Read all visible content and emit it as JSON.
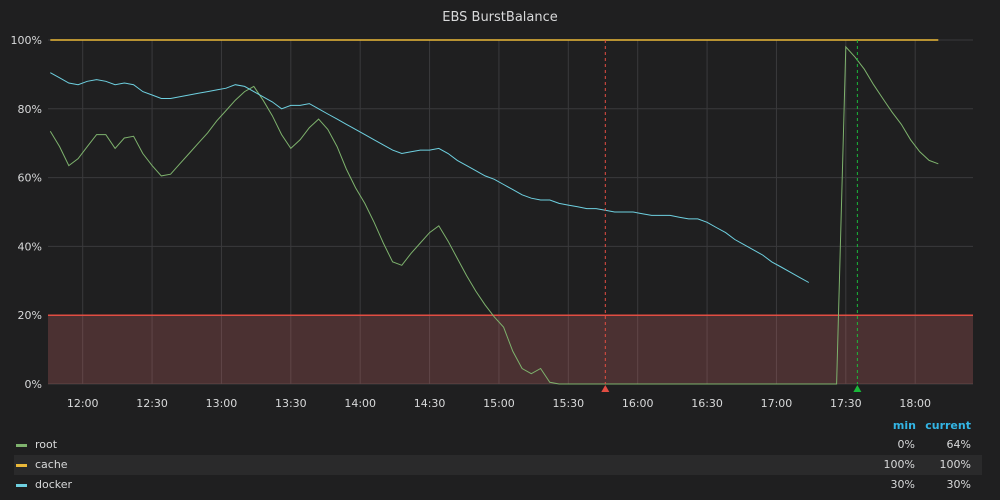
{
  "chart_data": {
    "type": "line",
    "title": "EBS BurstBalance",
    "y_unit": "%",
    "ylim": [
      0,
      100
    ],
    "y_ticks": [
      "0%",
      "20%",
      "40%",
      "60%",
      "80%",
      "100%"
    ],
    "x_ticks": [
      "12:00",
      "12:30",
      "13:00",
      "13:30",
      "14:00",
      "14:30",
      "15:00",
      "15:30",
      "16:00",
      "16:30",
      "17:00",
      "17:30",
      "18:00"
    ],
    "xlim": [
      "11:45",
      "18:25"
    ],
    "grid": true,
    "threshold": {
      "value": 20,
      "fill": "below",
      "color": "#e24d42"
    },
    "annotations": [
      {
        "time": "15:46",
        "color": "#e24d42"
      },
      {
        "time": "17:35",
        "color": "#1ab83a"
      }
    ],
    "series": [
      {
        "name": "root",
        "color": "#7eb26d",
        "points": [
          [
            "11:46",
            73.5
          ],
          [
            "11:50",
            69
          ],
          [
            "11:54",
            63.5
          ],
          [
            "11:58",
            65.5
          ],
          [
            "12:02",
            69
          ],
          [
            "12:06",
            72.5
          ],
          [
            "12:10",
            72.5
          ],
          [
            "12:14",
            68.5
          ],
          [
            "12:18",
            71.5
          ],
          [
            "12:22",
            72
          ],
          [
            "12:26",
            67
          ],
          [
            "12:30",
            63.5
          ],
          [
            "12:34",
            60.5
          ],
          [
            "12:38",
            61
          ],
          [
            "12:42",
            64
          ],
          [
            "12:46",
            67
          ],
          [
            "12:50",
            70
          ],
          [
            "12:54",
            73
          ],
          [
            "12:58",
            76.5
          ],
          [
            "13:02",
            79.5
          ],
          [
            "13:06",
            82.5
          ],
          [
            "13:10",
            85
          ],
          [
            "13:14",
            86.5
          ],
          [
            "13:18",
            82.5
          ],
          [
            "13:22",
            78
          ],
          [
            "13:26",
            72.5
          ],
          [
            "13:30",
            68.5
          ],
          [
            "13:34",
            71
          ],
          [
            "13:38",
            74.5
          ],
          [
            "13:42",
            77
          ],
          [
            "13:46",
            74
          ],
          [
            "13:50",
            69
          ],
          [
            "13:54",
            62.5
          ],
          [
            "13:58",
            57
          ],
          [
            "14:02",
            52.5
          ],
          [
            "14:06",
            47
          ],
          [
            "14:10",
            41
          ],
          [
            "14:14",
            35.5
          ],
          [
            "14:18",
            34.5
          ],
          [
            "14:22",
            38
          ],
          [
            "14:26",
            41
          ],
          [
            "14:30",
            44
          ],
          [
            "14:34",
            46
          ],
          [
            "14:38",
            41.5
          ],
          [
            "14:42",
            36.5
          ],
          [
            "14:46",
            31.5
          ],
          [
            "14:50",
            27
          ],
          [
            "14:54",
            23
          ],
          [
            "14:58",
            19.5
          ],
          [
            "15:02",
            16.5
          ],
          [
            "15:06",
            9.5
          ],
          [
            "15:10",
            4.5
          ],
          [
            "15:14",
            3
          ],
          [
            "15:18",
            4.5
          ],
          [
            "15:22",
            0.5
          ],
          [
            "15:26",
            0
          ],
          [
            "15:50",
            0
          ],
          [
            "16:20",
            0
          ],
          [
            "16:50",
            0
          ],
          [
            "17:20",
            0
          ],
          [
            "17:26",
            0
          ],
          [
            "17:30",
            98
          ],
          [
            "17:34",
            95
          ],
          [
            "17:38",
            91.5
          ],
          [
            "17:42",
            87
          ],
          [
            "17:46",
            83
          ],
          [
            "17:50",
            79
          ],
          [
            "17:54",
            75.5
          ],
          [
            "17:58",
            71
          ],
          [
            "18:02",
            67.5
          ],
          [
            "18:06",
            65
          ],
          [
            "18:10",
            64
          ]
        ]
      },
      {
        "name": "cache",
        "color": "#eab839",
        "points": [
          [
            "11:46",
            100
          ],
          [
            "18:10",
            100
          ]
        ]
      },
      {
        "name": "docker",
        "color": "#6ed0e0",
        "points": [
          [
            "11:46",
            90.5
          ],
          [
            "11:50",
            89
          ],
          [
            "11:54",
            87.5
          ],
          [
            "11:58",
            87
          ],
          [
            "12:02",
            88
          ],
          [
            "12:06",
            88.5
          ],
          [
            "12:10",
            88
          ],
          [
            "12:14",
            87
          ],
          [
            "12:18",
            87.5
          ],
          [
            "12:22",
            87
          ],
          [
            "12:26",
            85
          ],
          [
            "12:30",
            84
          ],
          [
            "12:34",
            83
          ],
          [
            "12:38",
            83
          ],
          [
            "12:42",
            83.5
          ],
          [
            "12:46",
            84
          ],
          [
            "12:50",
            84.5
          ],
          [
            "12:54",
            85
          ],
          [
            "12:58",
            85.5
          ],
          [
            "13:02",
            86
          ],
          [
            "13:06",
            87
          ],
          [
            "13:10",
            86.5
          ],
          [
            "13:14",
            85
          ],
          [
            "13:18",
            83.5
          ],
          [
            "13:22",
            82
          ],
          [
            "13:26",
            80
          ],
          [
            "13:30",
            81
          ],
          [
            "13:34",
            81
          ],
          [
            "13:38",
            81.5
          ],
          [
            "13:42",
            80
          ],
          [
            "13:46",
            78.5
          ],
          [
            "13:50",
            77
          ],
          [
            "13:54",
            75.5
          ],
          [
            "13:58",
            74
          ],
          [
            "14:02",
            72.5
          ],
          [
            "14:06",
            71
          ],
          [
            "14:10",
            69.5
          ],
          [
            "14:14",
            68
          ],
          [
            "14:18",
            67
          ],
          [
            "14:22",
            67.5
          ],
          [
            "14:26",
            68
          ],
          [
            "14:30",
            68
          ],
          [
            "14:34",
            68.5
          ],
          [
            "14:38",
            67
          ],
          [
            "14:42",
            65
          ],
          [
            "14:46",
            63.5
          ],
          [
            "14:50",
            62
          ],
          [
            "14:54",
            60.5
          ],
          [
            "14:58",
            59.5
          ],
          [
            "15:02",
            58
          ],
          [
            "15:06",
            56.5
          ],
          [
            "15:10",
            55
          ],
          [
            "15:14",
            54
          ],
          [
            "15:18",
            53.5
          ],
          [
            "15:22",
            53.5
          ],
          [
            "15:26",
            52.5
          ],
          [
            "15:30",
            52
          ],
          [
            "15:34",
            51.5
          ],
          [
            "15:38",
            51
          ],
          [
            "15:42",
            51
          ],
          [
            "15:46",
            50.5
          ],
          [
            "15:50",
            50
          ],
          [
            "15:54",
            50
          ],
          [
            "15:58",
            50
          ],
          [
            "16:02",
            49.5
          ],
          [
            "16:06",
            49
          ],
          [
            "16:10",
            49
          ],
          [
            "16:14",
            49
          ],
          [
            "16:18",
            48.5
          ],
          [
            "16:22",
            48
          ],
          [
            "16:26",
            48
          ],
          [
            "16:30",
            47
          ],
          [
            "16:34",
            45.5
          ],
          [
            "16:38",
            44
          ],
          [
            "16:42",
            42
          ],
          [
            "16:46",
            40.5
          ],
          [
            "16:50",
            39
          ],
          [
            "16:54",
            37.5
          ],
          [
            "16:58",
            35.5
          ],
          [
            "17:02",
            34
          ],
          [
            "17:06",
            32.5
          ],
          [
            "17:10",
            31
          ],
          [
            "17:14",
            29.5
          ]
        ]
      }
    ]
  },
  "legend": {
    "headers": {
      "min": "min",
      "current": "current"
    },
    "items": [
      {
        "name": "root",
        "min": "0%",
        "current": "64%",
        "color": "#7eb26d"
      },
      {
        "name": "cache",
        "min": "100%",
        "current": "100%",
        "color": "#eab839"
      },
      {
        "name": "docker",
        "min": "30%",
        "current": "30%",
        "color": "#6ed0e0"
      }
    ]
  }
}
